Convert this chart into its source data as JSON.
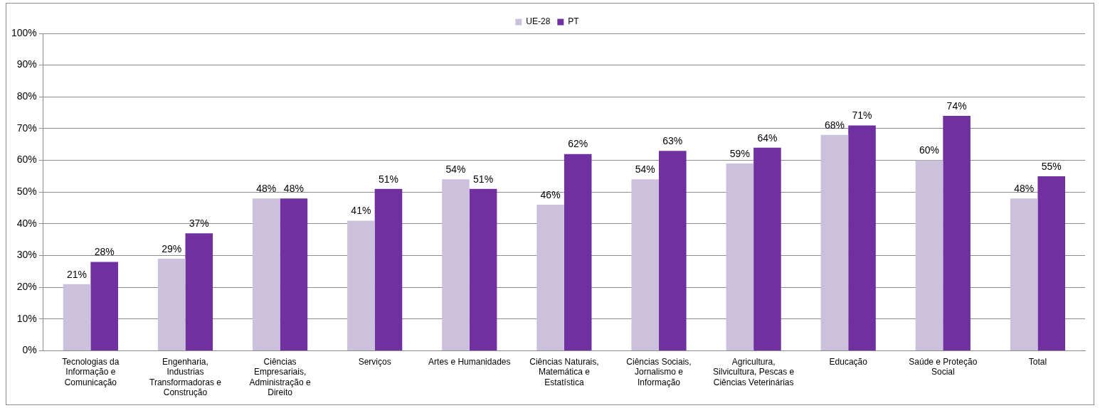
{
  "chart_data": {
    "type": "bar",
    "categories": [
      "Tecnologias da Informação e Comunicação",
      "Engenharia, Industrias Transformadoras e Construção",
      "Ciências Empresariais, Administração e Direito",
      "Serviços",
      "Artes e Humanidades",
      "Ciências Naturais, Matemática e Estatística",
      "Ciências Sociais, Jornalismo e Informação",
      "Agricultura, Silvicultura, Pescas e Ciências Veterinárias",
      "Educação",
      "Saúde e Proteção Social",
      "Total"
    ],
    "series": [
      {
        "name": "UE-28",
        "color": "#cbc1dd",
        "values": [
          21,
          29,
          48,
          41,
          54,
          46,
          54,
          59,
          68,
          60,
          48
        ],
        "value_labels": [
          "21%",
          "29%",
          "48%",
          "41%",
          "54%",
          "46%",
          "54%",
          "59%",
          "68%",
          "60%",
          "48%"
        ]
      },
      {
        "name": "PT",
        "color": "#7030a0",
        "values": [
          28,
          37,
          48,
          51,
          51,
          62,
          63,
          64,
          71,
          74,
          55
        ],
        "value_labels": [
          "28%",
          "37%",
          "48%",
          "51%",
          "51%",
          "62%",
          "63%",
          "64%",
          "71%",
          "74%",
          "55%"
        ]
      }
    ],
    "ylim": [
      0,
      100
    ],
    "yticks": [
      {
        "value": 0,
        "label": "0%"
      },
      {
        "value": 10,
        "label": "10%"
      },
      {
        "value": 20,
        "label": "20%"
      },
      {
        "value": 30,
        "label": "30%"
      },
      {
        "value": 40,
        "label": "40%"
      },
      {
        "value": 50,
        "label": "50%"
      },
      {
        "value": 60,
        "label": "60%"
      },
      {
        "value": 70,
        "label": "70%"
      },
      {
        "value": 80,
        "label": "80%"
      },
      {
        "value": 90,
        "label": "90%"
      },
      {
        "value": 100,
        "label": "100%"
      }
    ],
    "grid": "y",
    "legend": "top"
  }
}
